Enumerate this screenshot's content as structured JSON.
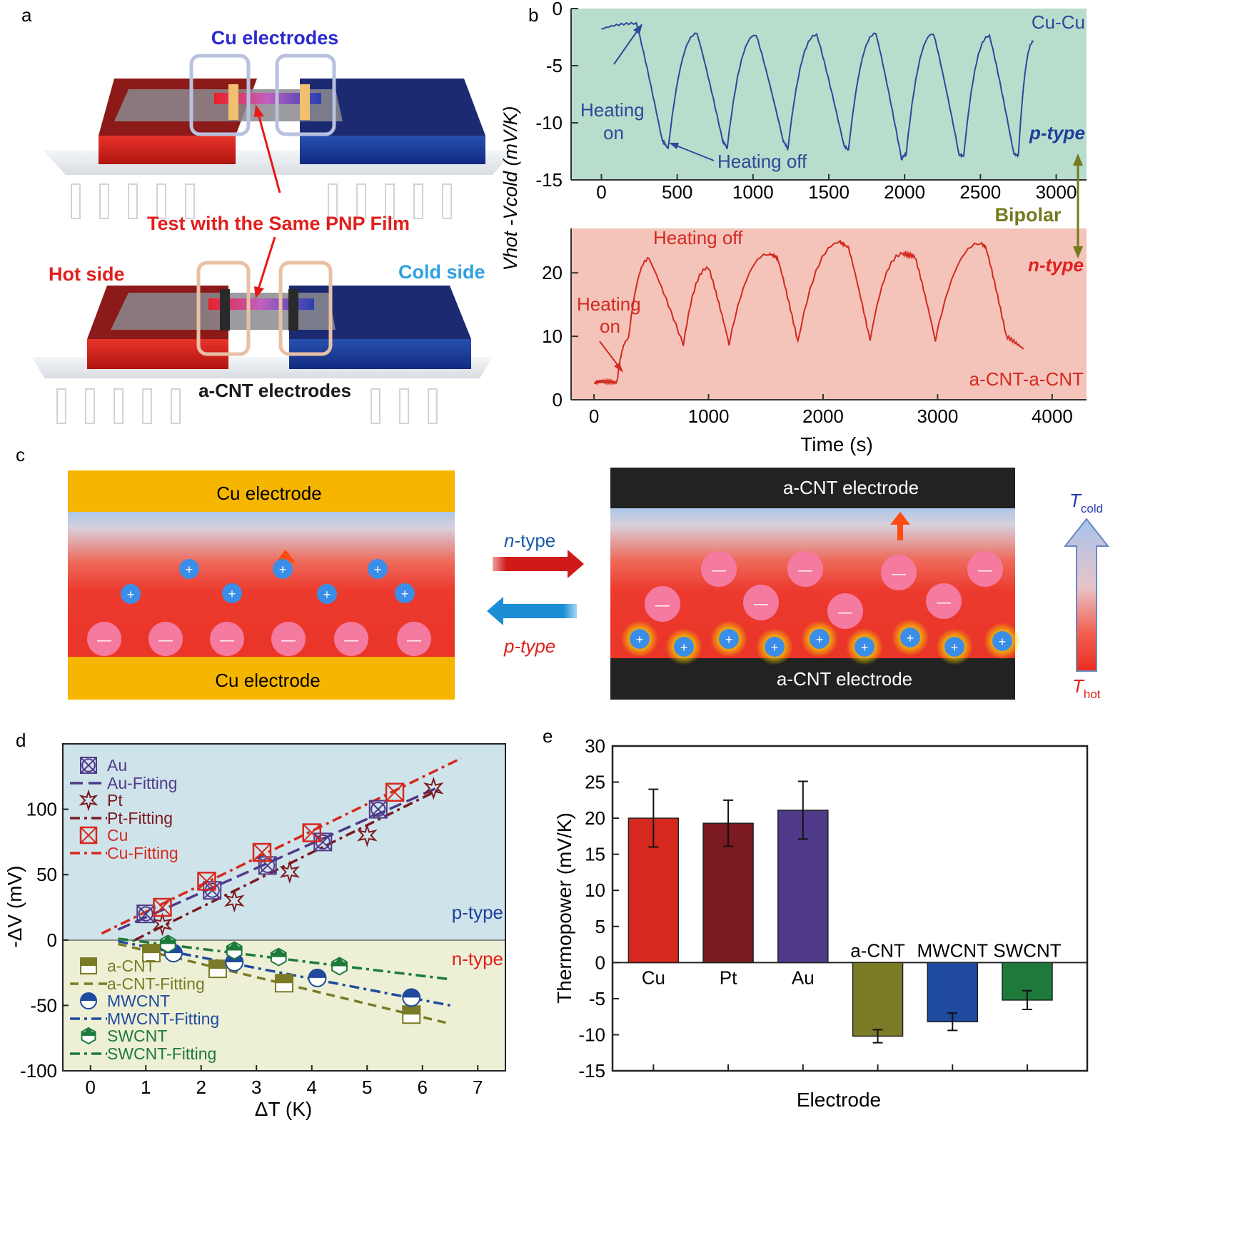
{
  "colors": {
    "hot": "#e0201c",
    "cold": "#1c3f9c",
    "ptype": "#1c3f9c",
    "ntype": "#e0201c",
    "p_bg": "#b9ddcd",
    "n_bg": "#f4c4bb",
    "d_p_bg": "#cfe4ea",
    "d_n_bg": "#eef0d6",
    "cu_line": "#2a4a9a",
    "cnt_line": "#d22a1f",
    "olive": "#747a1e",
    "cu_bar": "#d6281e",
    "pt_bar": "#7b1a20",
    "au_bar": "#4f3a8a",
    "acnt_bar": "#7b7a27",
    "mwcnt_bar": "#1f4a9e",
    "swcnt_bar": "#1d7a3a",
    "cu_pad": "#f6b600",
    "cnt_pad": "#222222"
  },
  "panels": {
    "a": "a",
    "b": "b",
    "c": "c",
    "d": "d",
    "e": "e"
  },
  "panel_a": {
    "cu_electrodes": "Cu electrodes",
    "test_label": "Test with the Same PNP Film",
    "hot_side": "Hot side",
    "cold_side": "Cold side",
    "acnt_electrodes": "a-CNT electrodes"
  },
  "panel_b": {
    "ylabel": "Vhot -Vcold (mV/K)",
    "xlabel": "Time (s)",
    "bipolar": "Bipolar",
    "top": {
      "label": "Cu-Cu",
      "type": "p-type",
      "heating_on": [
        "Heating",
        "on"
      ],
      "heating_off": "Heating off"
    },
    "bottom": {
      "label": "a-CNT-a-CNT",
      "type": "n-type",
      "heating_on": [
        "Heating",
        "on"
      ],
      "heating_off": "Heating off"
    }
  },
  "panel_c": {
    "left_top": "Cu electrode",
    "left_bottom": "Cu electrode",
    "right_top": "a-CNT electrode",
    "right_bottom": "a-CNT electrode",
    "n_arrow": "-type",
    "n_arrow_prefix": "n",
    "p_arrow": "-type",
    "p_arrow_prefix": "p",
    "t_cold": "T",
    "t_cold_sub": "cold",
    "t_hot": "T",
    "t_hot_sub": "hot",
    "plus": "+",
    "minus": "—"
  },
  "chart_data": [
    {
      "type": "line",
      "title": "Cu-Cu",
      "xlabel": "",
      "ylabel": "Vhot -Vcold (mV/K)",
      "xlim": [
        -200,
        3200
      ],
      "ylim": [
        -15,
        0
      ],
      "xticks": [
        0,
        500,
        1000,
        1500,
        2000,
        2500,
        3000
      ],
      "yticks": [
        0,
        -5,
        -10,
        -15
      ],
      "series": [
        {
          "name": "Cu-Cu",
          "x": [
            0,
            230,
            400,
            440,
            630,
            800,
            830,
            1020,
            1200,
            1230,
            1420,
            1600,
            1630,
            1810,
            1980,
            2010,
            2190,
            2360,
            2390,
            2560,
            2720,
            2750,
            2850
          ],
          "y": [
            -1.8,
            -1.3,
            -11.5,
            -12.3,
            -2.2,
            -11.6,
            -12.2,
            -2.3,
            -11.6,
            -12.3,
            -2.3,
            -12.0,
            -12.4,
            -2.2,
            -13.2,
            -12.8,
            -2.2,
            -12.8,
            -12.9,
            -2.4,
            -12.7,
            -12.9,
            -2.9
          ]
        }
      ]
    },
    {
      "type": "line",
      "title": "a-CNT-a-CNT",
      "xlabel": "Time (s)",
      "ylabel": "",
      "xlim": [
        -200,
        4300
      ],
      "ylim": [
        0,
        27
      ],
      "xticks": [
        0,
        1000,
        2000,
        3000,
        4000
      ],
      "yticks": [
        0,
        10,
        20
      ],
      "series": [
        {
          "name": "a-CNT-a-CNT",
          "x": [
            0,
            80,
            200,
            300,
            480,
            780,
            1000,
            1180,
            1530,
            1600,
            1780,
            2150,
            2220,
            2410,
            2700,
            2800,
            2980,
            3380,
            3420,
            3600,
            3750
          ],
          "y": [
            2.6,
            2.9,
            2.7,
            9.5,
            22.2,
            8.6,
            20.8,
            8.8,
            23.0,
            22.4,
            9.1,
            24.8,
            24.0,
            9.3,
            23.0,
            22.6,
            9.4,
            24.7,
            24.0,
            10.0,
            8.0
          ]
        }
      ]
    },
    {
      "type": "scatter",
      "xlabel": "ΔT (K)",
      "ylabel": "-ΔV (mV)",
      "xlim": [
        -0.5,
        7.5
      ],
      "ylim": [
        -100,
        150
      ],
      "xticks": [
        0,
        1,
        2,
        3,
        4,
        5,
        6,
        7
      ],
      "yticks": [
        100,
        50,
        0,
        -50,
        -100
      ],
      "region_labels": {
        "p": "p-type",
        "n": "n-type"
      },
      "series": [
        {
          "name": "Au",
          "x": [
            1.0,
            2.2,
            3.2,
            4.2,
            5.2
          ],
          "y": [
            20,
            38,
            57,
            75,
            100
          ],
          "fit": [
            [
              0.5,
              8
            ],
            [
              6.3,
              117
            ]
          ],
          "fit_name": "Au-Fitting",
          "color": "#4f3a8a"
        },
        {
          "name": "Pt",
          "x": [
            1.3,
            2.6,
            3.6,
            5.0,
            6.2
          ],
          "y": [
            12,
            30,
            52,
            80,
            116
          ],
          "fit": [
            [
              0.8,
              0
            ],
            [
              6.3,
              115
            ]
          ],
          "fit_name": "Pt-Fitting",
          "color": "#7b1a20"
        },
        {
          "name": "Cu",
          "x": [
            1.3,
            2.1,
            3.1,
            4.0,
            5.5
          ],
          "y": [
            25,
            45,
            67,
            82,
            113
          ],
          "fit": [
            [
              0.2,
              5
            ],
            [
              6.7,
              139
            ]
          ],
          "fit_name": "Cu-Fitting",
          "color": "#d6281e"
        },
        {
          "name": "a-CNT",
          "x": [
            1.1,
            2.3,
            3.5,
            5.8
          ],
          "y": [
            -10,
            -22,
            -33,
            -57
          ],
          "fit": [
            [
              0.5,
              -3
            ],
            [
              6.5,
              -64
            ]
          ],
          "fit_name": "a-CNT-Fitting",
          "color": "#7b7a27"
        },
        {
          "name": "MWCNT",
          "x": [
            1.5,
            2.6,
            4.1,
            5.8
          ],
          "y": [
            -10,
            -17,
            -29,
            -44
          ],
          "fit": [
            [
              0.5,
              -1
            ],
            [
              6.5,
              -50
            ]
          ],
          "fit_name": "MWCNT-Fitting",
          "color": "#1f4a9e"
        },
        {
          "name": "SWCNT",
          "x": [
            1.4,
            2.6,
            3.4,
            4.5
          ],
          "y": [
            -3,
            -8,
            -13,
            -20
          ],
          "fit": [
            [
              0.5,
              1
            ],
            [
              6.5,
              -30
            ]
          ],
          "fit_name": "SWCNT-Fitting",
          "color": "#1d7a3a"
        }
      ]
    },
    {
      "type": "bar",
      "xlabel": "Electrode",
      "ylabel": "Thermopower (mV/K)",
      "ylim": [
        -15,
        30
      ],
      "yticks": [
        30,
        25,
        20,
        15,
        10,
        5,
        0,
        -5,
        -10,
        -15
      ],
      "categories": [
        "Cu",
        "Pt",
        "Au",
        "a-CNT",
        "MWCNT",
        "SWCNT"
      ],
      "values": [
        20.0,
        19.3,
        21.1,
        -10.2,
        -8.2,
        -5.2
      ],
      "errors": [
        4.0,
        3.2,
        4.0,
        0.9,
        1.2,
        1.3
      ],
      "colors": [
        "#d6281e",
        "#7b1a20",
        "#4f3a8a",
        "#7b7a27",
        "#1f4a9e",
        "#1d7a3a"
      ]
    }
  ]
}
